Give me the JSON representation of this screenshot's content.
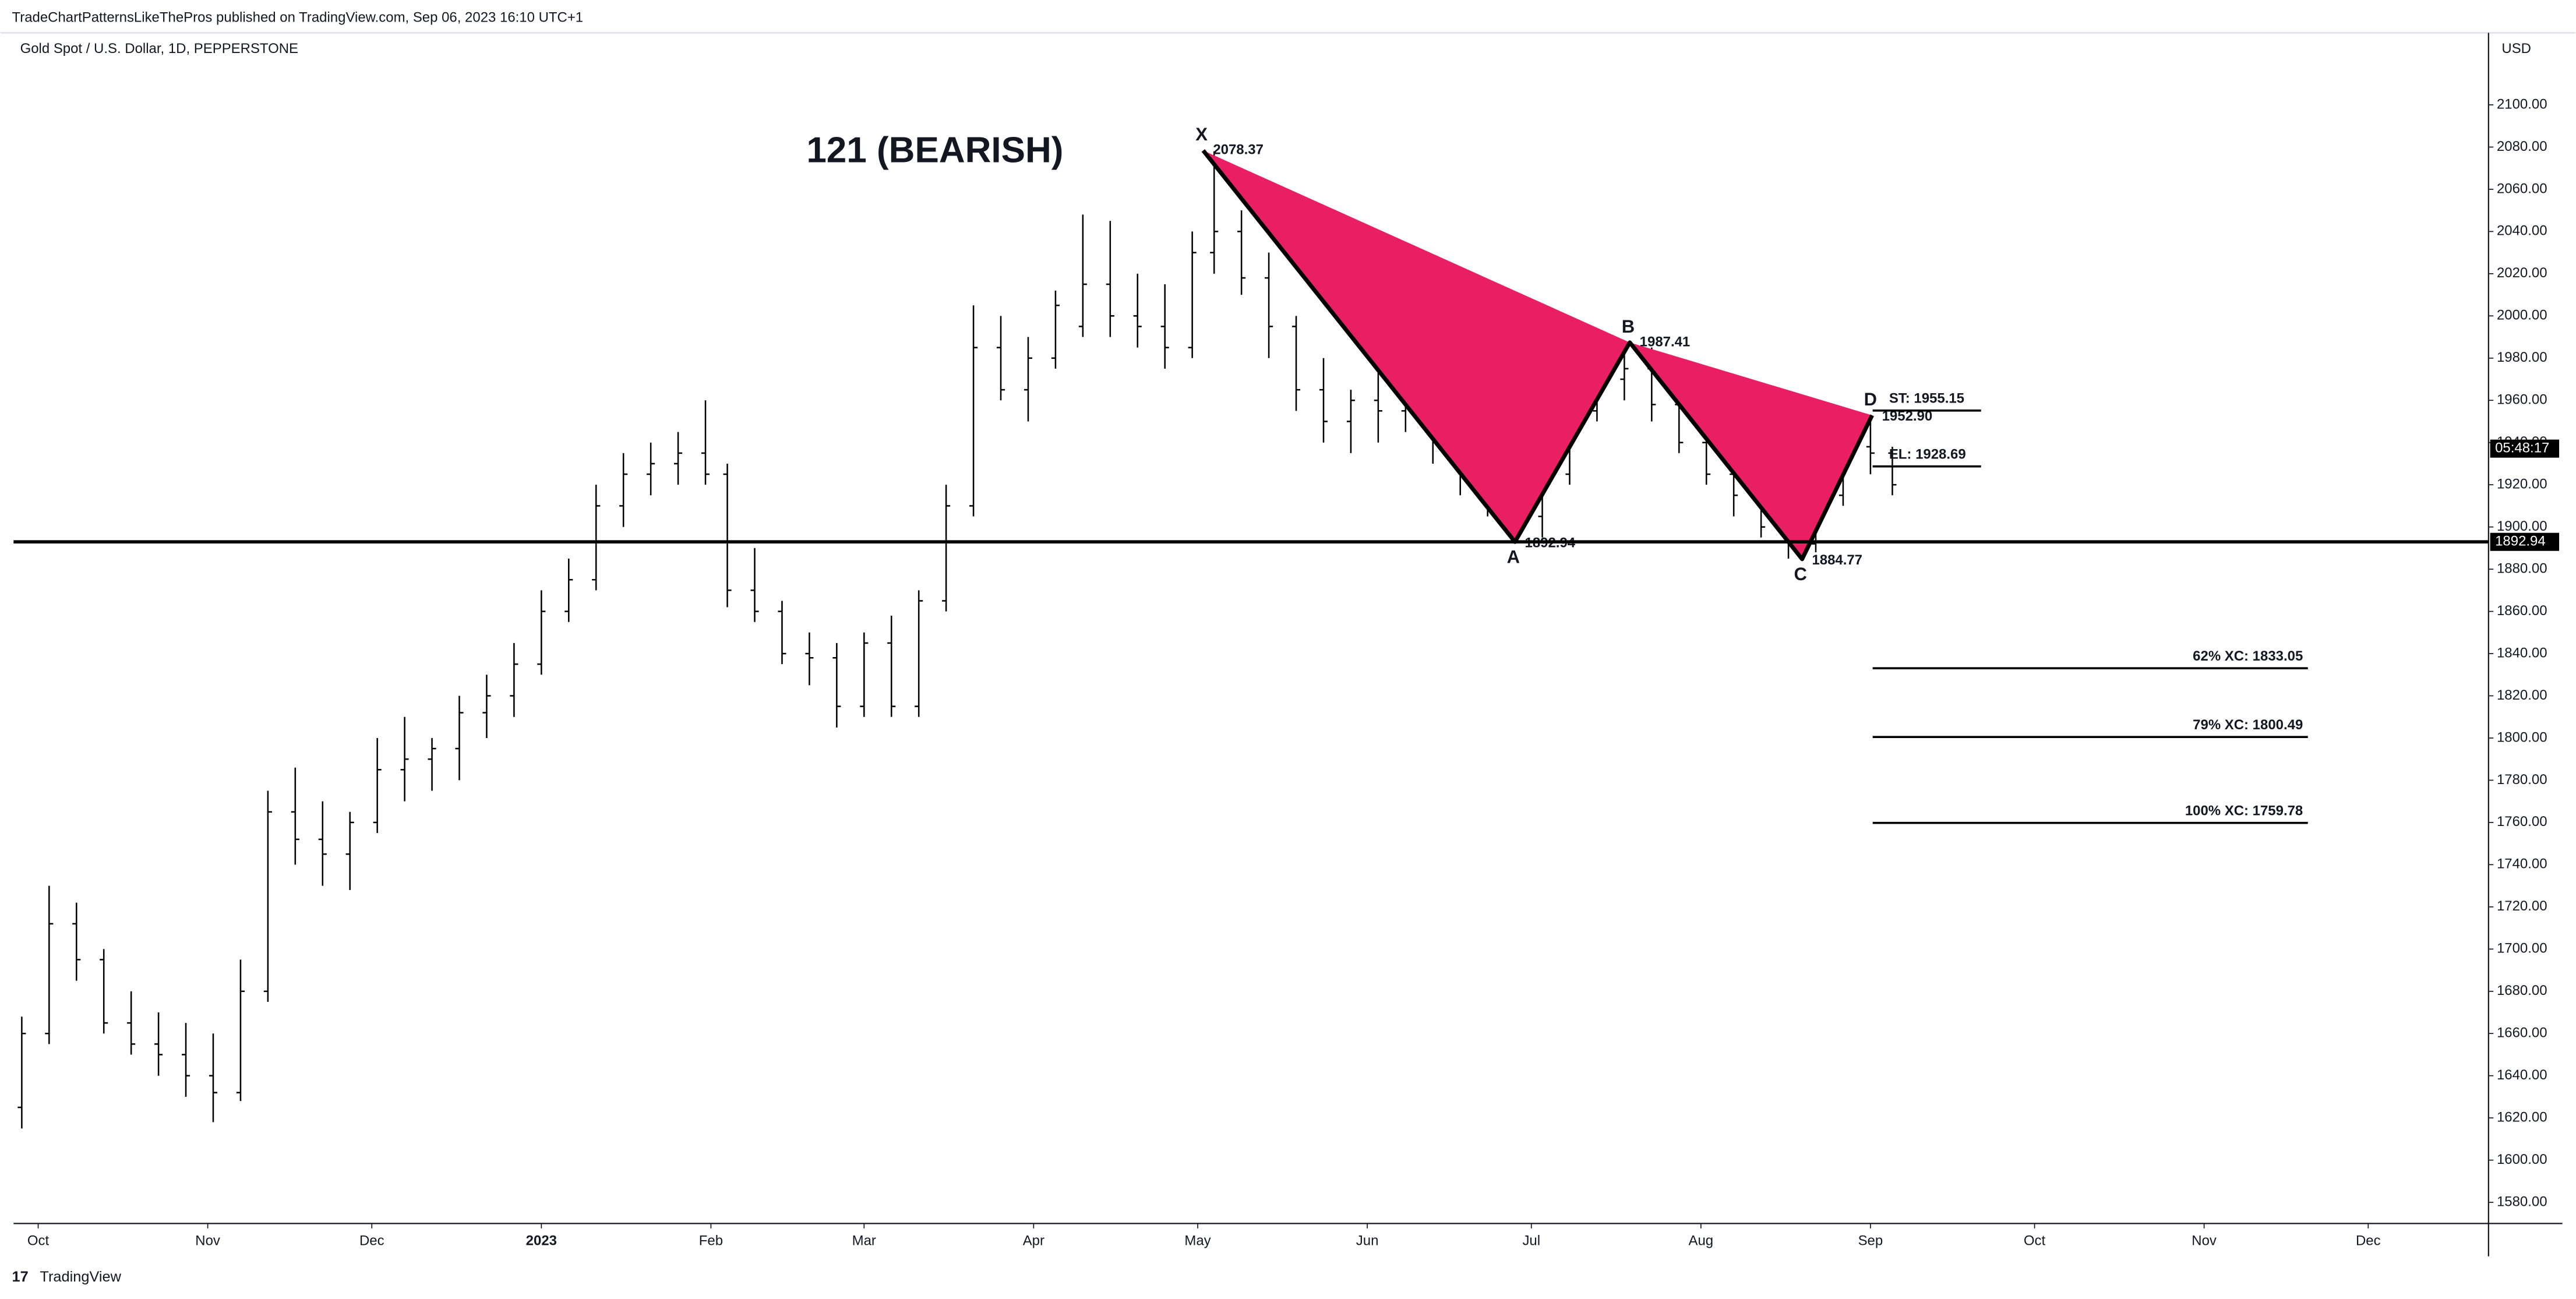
{
  "header": {
    "publisher": "TradeChartPatternsLikeThePros published on TradingView.com, Sep 06, 2023 16:10 UTC+1"
  },
  "footer": {
    "brand": "TradingView"
  },
  "chart_data": {
    "type": "ohlc",
    "title": "121 (BEARISH)",
    "symbol": "Gold Spot / U.S. Dollar, 1D, PEPPERSTONE",
    "currency": "USD",
    "countdown": "05:48:17",
    "color": "#000000",
    "x": [
      -3,
      2,
      7,
      12,
      17,
      22,
      27,
      32,
      37,
      42,
      47,
      52,
      57,
      62,
      67,
      72,
      77,
      82,
      87,
      92,
      97,
      102,
      107,
      112,
      117,
      122,
      126,
      131,
      136,
      141,
      146,
      151,
      156,
      161,
      166,
      171,
      176,
      181,
      186,
      191,
      196,
      201,
      206,
      211,
      215,
      220,
      225,
      230,
      235,
      240,
      245,
      250,
      255,
      260,
      265,
      270,
      275,
      280,
      285,
      290,
      295,
      300,
      305,
      310,
      315,
      320,
      325,
      330,
      335,
      339
    ],
    "open": [
      1625,
      1660,
      1712,
      1695,
      1665,
      1655,
      1650,
      1640,
      1632,
      1680,
      1765,
      1752,
      1745,
      1760,
      1785,
      1790,
      1795,
      1812,
      1820,
      1835,
      1860,
      1875,
      1910,
      1925,
      1930,
      1935,
      1925,
      1870,
      1860,
      1840,
      1838,
      1815,
      1845,
      1815,
      1865,
      1910,
      1985,
      1965,
      1980,
      1995,
      2015,
      2000,
      1995,
      1985,
      2030,
      2040,
      2018,
      1995,
      1965,
      1950,
      1960,
      1955,
      1960,
      1940,
      1925,
      1915,
      1905,
      1925,
      1955,
      1970,
      1975,
      1958,
      1940,
      1925,
      1915,
      1900,
      1892,
      1915,
      1938,
      1935
    ],
    "high": [
      1668,
      1730,
      1722,
      1700,
      1680,
      1670,
      1665,
      1660,
      1695,
      1775,
      1786,
      1770,
      1765,
      1800,
      1810,
      1800,
      1820,
      1830,
      1845,
      1870,
      1885,
      1920,
      1935,
      1940,
      1945,
      1960,
      1930,
      1890,
      1865,
      1850,
      1845,
      1850,
      1858,
      1870,
      1920,
      2005,
      2000,
      1990,
      2012,
      2048,
      2045,
      2020,
      2015,
      2040,
      2078,
      2050,
      2030,
      2000,
      1980,
      1965,
      1980,
      1975,
      1965,
      1945,
      1935,
      1925,
      1930,
      1960,
      1980,
      1987,
      1985,
      1965,
      1948,
      1932,
      1920,
      1905,
      1920,
      1945,
      1953,
      1938
    ],
    "low": [
      1615,
      1655,
      1685,
      1660,
      1650,
      1640,
      1630,
      1618,
      1628,
      1675,
      1740,
      1730,
      1728,
      1755,
      1770,
      1775,
      1780,
      1800,
      1810,
      1830,
      1855,
      1870,
      1900,
      1915,
      1920,
      1920,
      1862,
      1855,
      1835,
      1825,
      1805,
      1810,
      1810,
      1810,
      1860,
      1905,
      1960,
      1950,
      1975,
      1990,
      1990,
      1985,
      1975,
      1980,
      2020,
      2010,
      1980,
      1955,
      1940,
      1935,
      1940,
      1945,
      1930,
      1915,
      1905,
      1893,
      1895,
      1920,
      1950,
      1960,
      1950,
      1935,
      1920,
      1905,
      1895,
      1885,
      1888,
      1910,
      1925,
      1915
    ],
    "close": [
      1660,
      1712,
      1695,
      1665,
      1655,
      1650,
      1640,
      1632,
      1680,
      1765,
      1752,
      1745,
      1760,
      1785,
      1790,
      1795,
      1812,
      1820,
      1835,
      1860,
      1875,
      1910,
      1925,
      1930,
      1935,
      1925,
      1870,
      1860,
      1840,
      1838,
      1815,
      1845,
      1815,
      1865,
      1910,
      1985,
      1965,
      1980,
      2005,
      2015,
      2000,
      1995,
      1985,
      2030,
      2040,
      2018,
      1995,
      1965,
      1950,
      1960,
      1955,
      1960,
      1940,
      1925,
      1915,
      1905,
      1925,
      1955,
      1970,
      1975,
      1958,
      1940,
      1925,
      1915,
      1900,
      1892,
      1915,
      1938,
      1935,
      1920
    ],
    "xlim": [
      -4.5,
      448
    ],
    "xticks": [
      {
        "value": 0,
        "label": "Oct"
      },
      {
        "value": 31,
        "label": "Nov"
      },
      {
        "value": 61,
        "label": "Dec"
      },
      {
        "value": 92,
        "label": "2023"
      },
      {
        "value": 123,
        "label": "Feb"
      },
      {
        "value": 151,
        "label": "Mar"
      },
      {
        "value": 182,
        "label": "Apr"
      },
      {
        "value": 212,
        "label": "May"
      },
      {
        "value": 243,
        "label": "Jun"
      },
      {
        "value": 273,
        "label": "Jul"
      },
      {
        "value": 304,
        "label": "Aug"
      },
      {
        "value": 335,
        "label": "Sep"
      },
      {
        "value": 365,
        "label": "Oct"
      },
      {
        "value": 396,
        "label": "Nov"
      },
      {
        "value": 426,
        "label": "Dec"
      }
    ],
    "ylim": [
      1570,
      2117
    ],
    "yticks": [
      {
        "value": 1580,
        "label": "1580.00"
      },
      {
        "value": 1600,
        "label": "1600.00"
      },
      {
        "value": 1620,
        "label": "1620.00"
      },
      {
        "value": 1640,
        "label": "1640.00"
      },
      {
        "value": 1660,
        "label": "1660.00"
      },
      {
        "value": 1680,
        "label": "1680.00"
      },
      {
        "value": 1700,
        "label": "1700.00"
      },
      {
        "value": 1720,
        "label": "1720.00"
      },
      {
        "value": 1740,
        "label": "1740.00"
      },
      {
        "value": 1760,
        "label": "1760.00"
      },
      {
        "value": 1780,
        "label": "1780.00"
      },
      {
        "value": 1800,
        "label": "1800.00"
      },
      {
        "value": 1820,
        "label": "1820.00"
      },
      {
        "value": 1840,
        "label": "1840.00"
      },
      {
        "value": 1860,
        "label": "1860.00"
      },
      {
        "value": 1880,
        "label": "1880.00"
      },
      {
        "value": 1900,
        "label": "1900.00"
      },
      {
        "value": 1920,
        "label": "1920.00"
      },
      {
        "value": 1940,
        "label": "1940.00"
      },
      {
        "value": 1960,
        "label": "1960.00"
      },
      {
        "value": 1980,
        "label": "1980.00"
      },
      {
        "value": 2000,
        "label": "2000.00"
      },
      {
        "value": 2020,
        "label": "2020.00"
      },
      {
        "value": 2040,
        "label": "2040.00"
      },
      {
        "value": 2060,
        "label": "2060.00"
      },
      {
        "value": 2080,
        "label": "2080.00"
      },
      {
        "value": 2100,
        "label": "2100.00"
      }
    ],
    "pattern": {
      "color": "#e91e63",
      "points": [
        {
          "name": "X",
          "x": 213,
          "y": 2078.37,
          "value_label": "2078.37"
        },
        {
          "name": "A",
          "x": 270,
          "y": 1892.94,
          "value_label": "1892.94"
        },
        {
          "name": "B",
          "x": 291,
          "y": 1987.41,
          "value_label": "1987.41"
        },
        {
          "name": "C",
          "x": 322.5,
          "y": 1884.77,
          "value_label": "1884.77"
        },
        {
          "name": "D",
          "x": 335.3,
          "y": 1952.9,
          "value_label": "1952.90"
        }
      ]
    },
    "support_line": 1892.94,
    "trade_levels": [
      {
        "label": "ST: 1955.15",
        "value": 1955.15
      },
      {
        "label": "EL: 1928.69",
        "value": 1928.69
      }
    ],
    "fib_levels": [
      {
        "label": "62% XC: 1833.05",
        "value": 1833.05
      },
      {
        "label": "79% XC: 1800.49",
        "value": 1800.49
      },
      {
        "label": "100% XC: 1759.78",
        "value": 1759.78
      }
    ]
  }
}
